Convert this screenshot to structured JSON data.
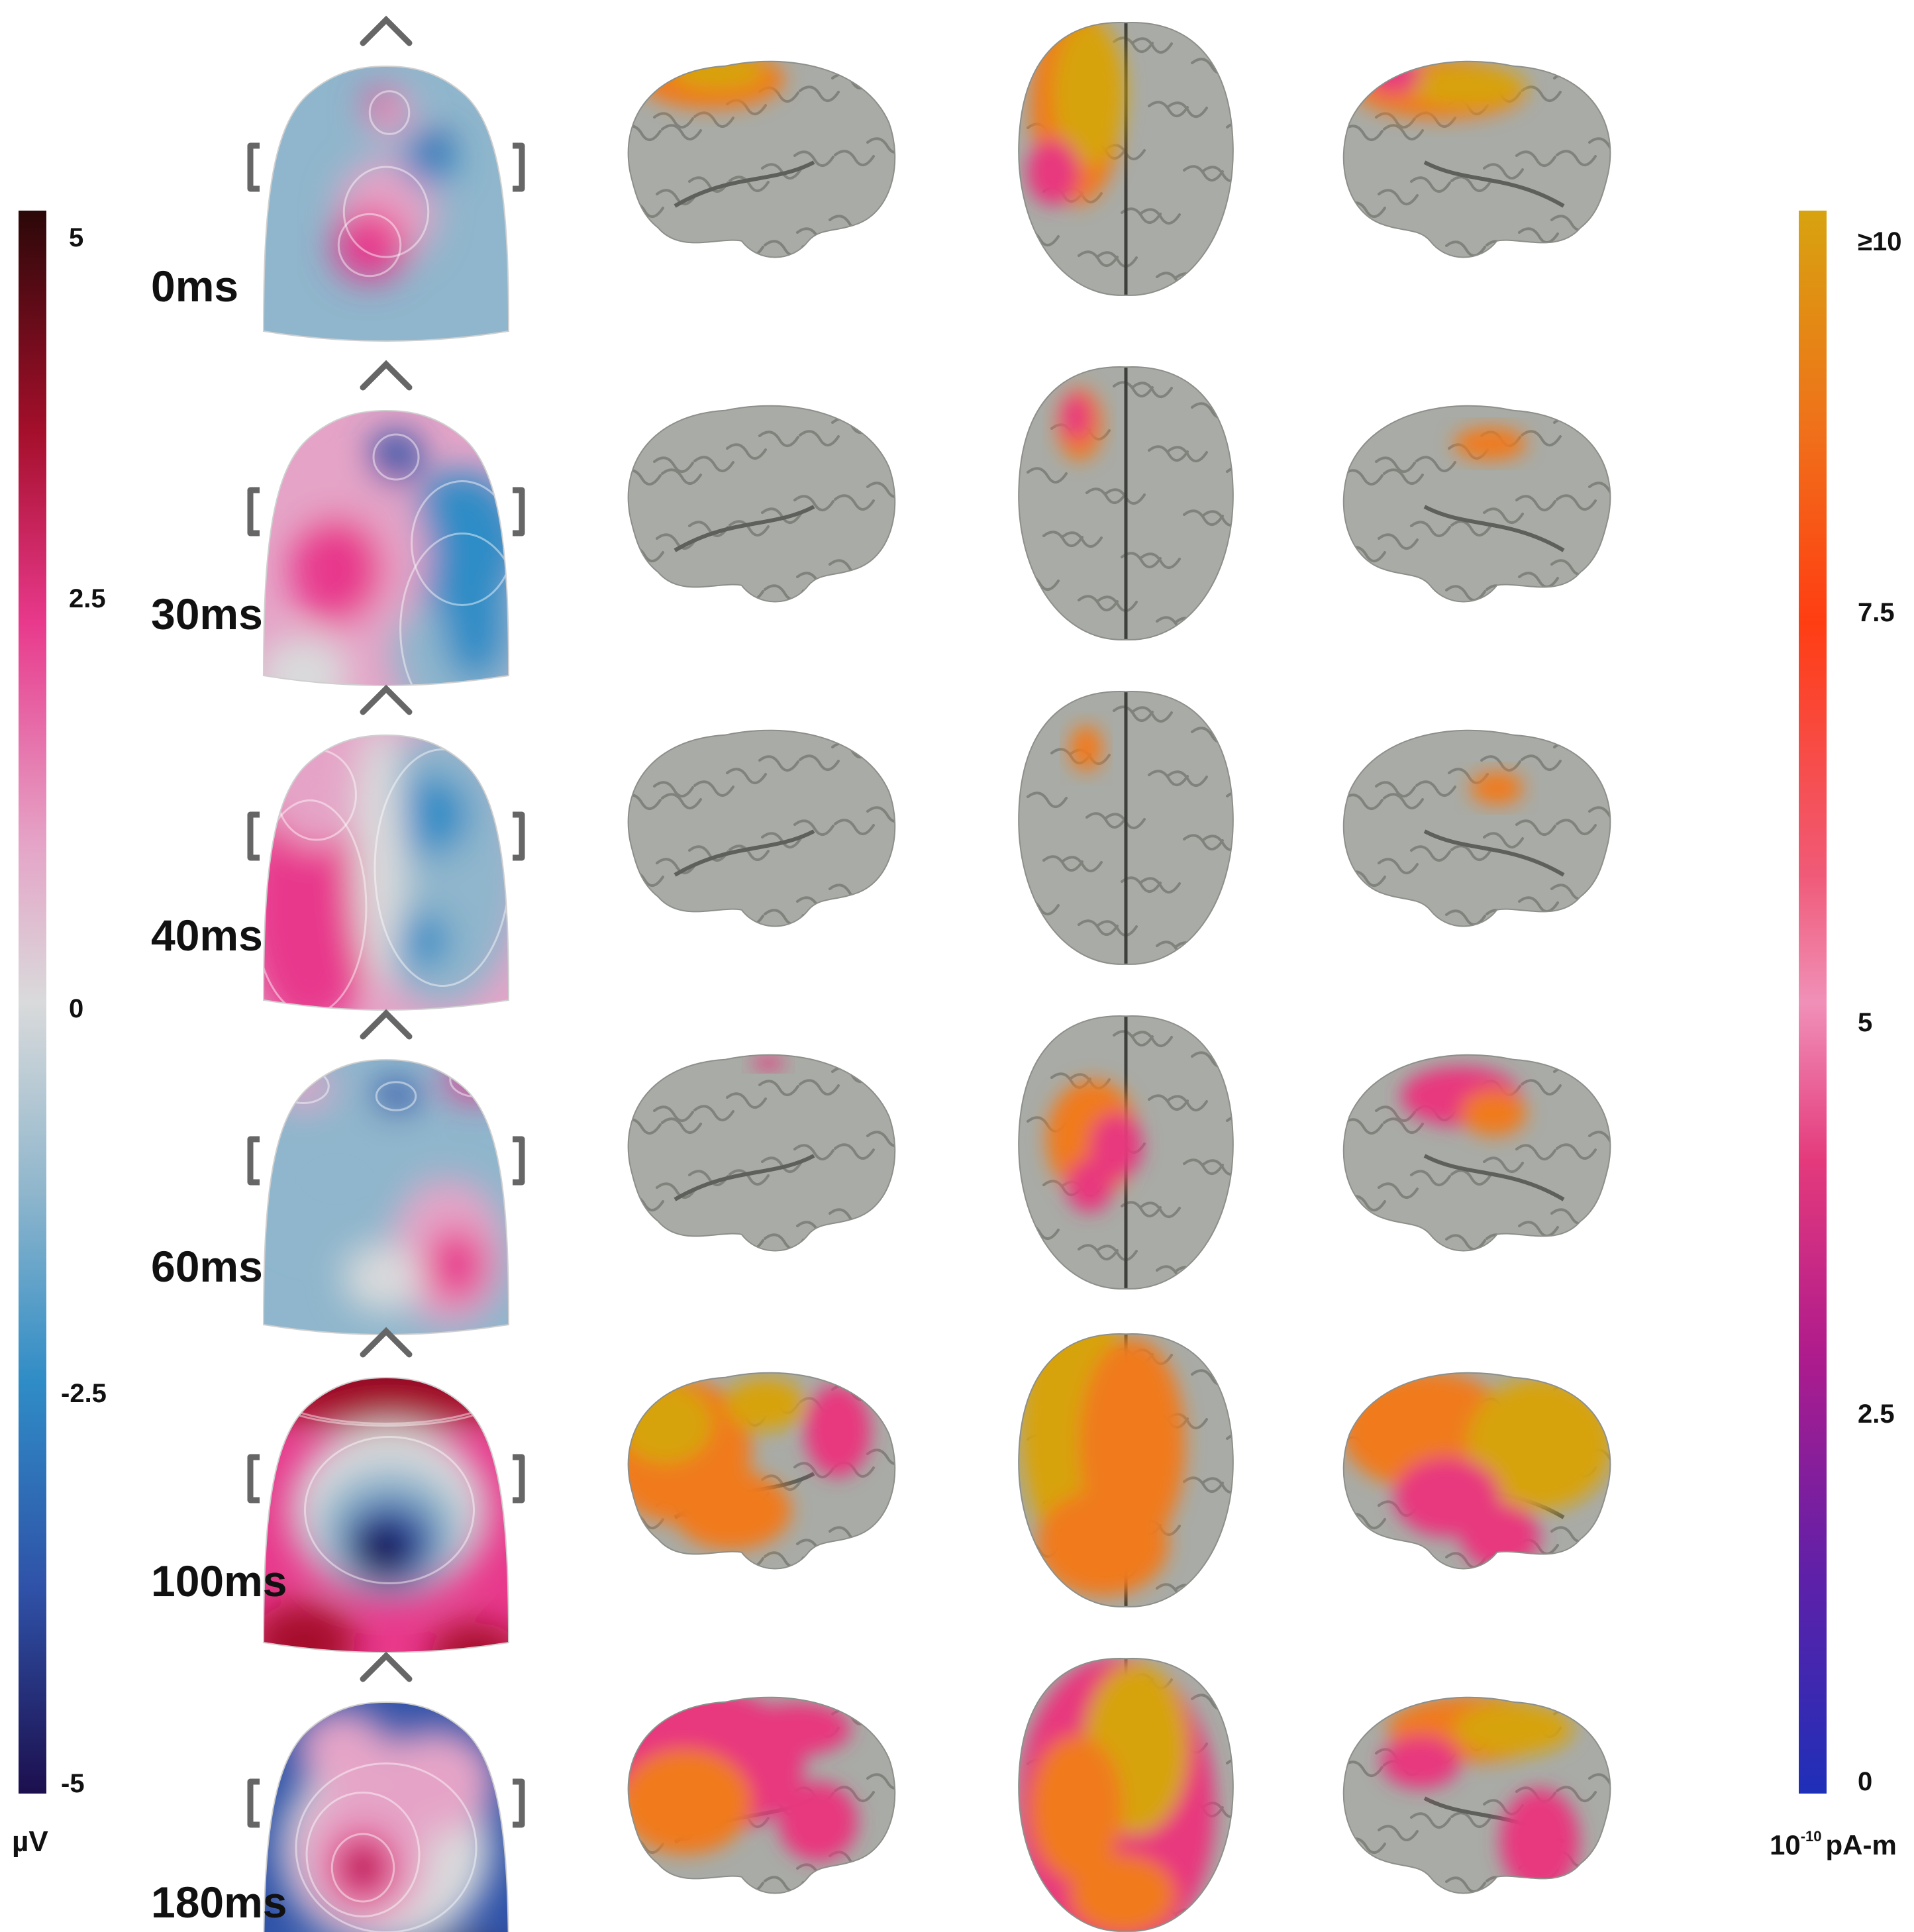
{
  "colors": {
    "background": "#ffffff",
    "brain": "#a9aba6",
    "brain_dark": "#6f716c",
    "head_outline": "#666666",
    "voltage_scale": [
      "#1c0f4e",
      "#2f52a8",
      "#2f8cc6",
      "#8fb6cc",
      "#d9dadb",
      "#e5a4c7",
      "#e8398c",
      "#a50f2b",
      "#2b0808"
    ],
    "current_scale": [
      "#1e2fb8",
      "#6020a8",
      "#b01c8c",
      "#e43a7c",
      "#f090b8",
      "#f05a78",
      "#ff3d12",
      "#f0701a",
      "#d7a30f"
    ]
  },
  "voltage_colorbar": {
    "unit": "µV",
    "ticks": [
      {
        "label": "5",
        "value": 5
      },
      {
        "label": "2.5",
        "value": 2.5
      },
      {
        "label": "0",
        "value": 0
      },
      {
        "label": "-2.5",
        "value": -2.5
      },
      {
        "label": "-5",
        "value": -5
      }
    ]
  },
  "current_colorbar": {
    "unit_base": "10",
    "unit_exp": "-10",
    "unit_rest": "pA-m",
    "ticks": [
      {
        "label": "≥10",
        "value": 10
      },
      {
        "label": "7.5",
        "value": 7.5
      },
      {
        "label": "5",
        "value": 5
      },
      {
        "label": "2.5",
        "value": 2.5
      },
      {
        "label": "0",
        "value": 0
      }
    ]
  },
  "rows": [
    {
      "label": "0ms"
    },
    {
      "label": "30ms"
    },
    {
      "label": "40ms"
    },
    {
      "label": "60ms"
    },
    {
      "label": "100ms"
    },
    {
      "label": "180ms"
    }
  ],
  "views": [
    "left-lateral",
    "top",
    "right-lateral"
  ]
}
